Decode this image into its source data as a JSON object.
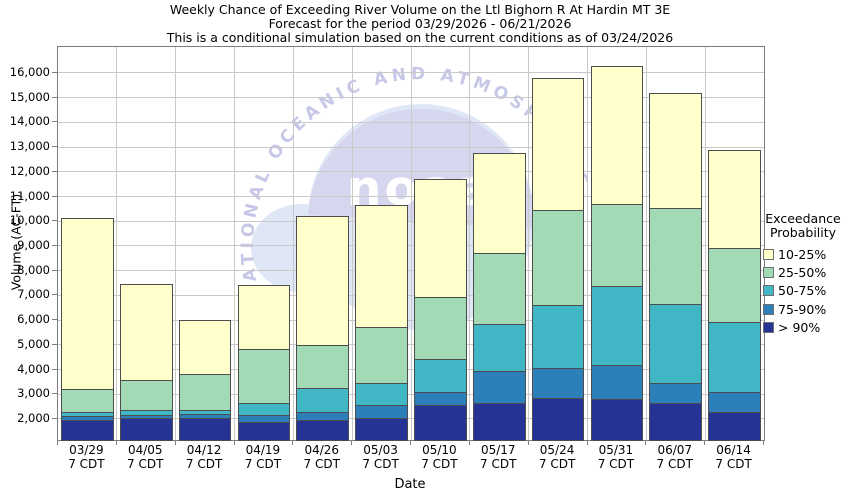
{
  "title_lines": [
    "Weekly Chance of Exceeding River Volume on the Ltl Bighorn R At Hardin MT 3E",
    "Forecast for the period 03/29/2026 - 06/21/2026",
    "This is a conditional simulation based on the current conditions as of 03/24/2026"
  ],
  "watermark": {
    "arc_text": "NATIONAL OCEANIC AND ATMOSPHERIC",
    "center_text": "noaa",
    "arc_color": "#c7c7e7",
    "dome_color": "#d6d6ee",
    "circle_color": "#dfe7f7",
    "letter_color": "#ffffff"
  },
  "colors": {
    "grid": "#c9c9c9",
    "axis": "#7d7d7d",
    "bar_border": "#4d4d4d",
    "text": "#000000"
  },
  "chart_data": {
    "type": "bar",
    "stacked": true,
    "title": "Weekly Chance of Exceeding River Volume on the Ltl Bighorn R At Hardin MT 3E",
    "subtitle": "Forecast for the period 03/29/2026 - 06/21/2026",
    "note": "This is a conditional simulation based on the current conditions as of 03/24/2026",
    "xlabel": "Date",
    "ylabel": "Volume (AC-FT)",
    "grid": true,
    "ylim": [
      1150,
      17050
    ],
    "yticks": [
      2000,
      3000,
      4000,
      5000,
      6000,
      7000,
      8000,
      9000,
      10000,
      11000,
      12000,
      13000,
      14000,
      15000,
      16000
    ],
    "categories": [
      "03/29",
      "04/05",
      "04/12",
      "04/19",
      "04/26",
      "05/03",
      "05/10",
      "05/17",
      "05/24",
      "05/31",
      "06/07",
      "06/14"
    ],
    "category_sublabel": "7 CDT",
    "baseline": 1150,
    "series": [
      {
        "name": "> 90%",
        "color": "#253494",
        "cumulative_tops": [
          1970,
          2030,
          2030,
          1870,
          1950,
          2050,
          2550,
          2630,
          2850,
          2800,
          2650,
          2270
        ]
      },
      {
        "name": "75-90%",
        "color": "#2c7fb8",
        "cumulative_tops": [
          2130,
          2170,
          2200,
          2160,
          2300,
          2550,
          3080,
          3950,
          4050,
          4200,
          3440,
          3080
        ]
      },
      {
        "name": "50-75%",
        "color": "#41b6c4",
        "cumulative_tops": [
          2300,
          2350,
          2360,
          2650,
          3250,
          3450,
          4440,
          5850,
          6600,
          7400,
          6650,
          5940
        ]
      },
      {
        "name": "25-50%",
        "color": "#a1dab4",
        "cumulative_tops": [
          3200,
          3560,
          3820,
          4850,
          5000,
          5720,
          6950,
          8700,
          10450,
          10700,
          10550,
          8900
        ]
      },
      {
        "name": "10-25%",
        "color": "#ffffcc",
        "cumulative_tops": [
          10150,
          7480,
          6000,
          7430,
          10200,
          10640,
          11700,
          12760,
          15810,
          16270,
          15190,
          12900
        ]
      }
    ],
    "legend": {
      "title_lines": [
        "Exceedance",
        "Probability"
      ],
      "position": "right",
      "entries": [
        {
          "label": "10-25%",
          "color": "#ffffcc"
        },
        {
          "label": "25-50%",
          "color": "#a1dab4"
        },
        {
          "label": "50-75%",
          "color": "#41b6c4"
        },
        {
          "label": "75-90%",
          "color": "#2c7fb8"
        },
        {
          "label": "> 90%",
          "color": "#253494"
        }
      ]
    }
  }
}
